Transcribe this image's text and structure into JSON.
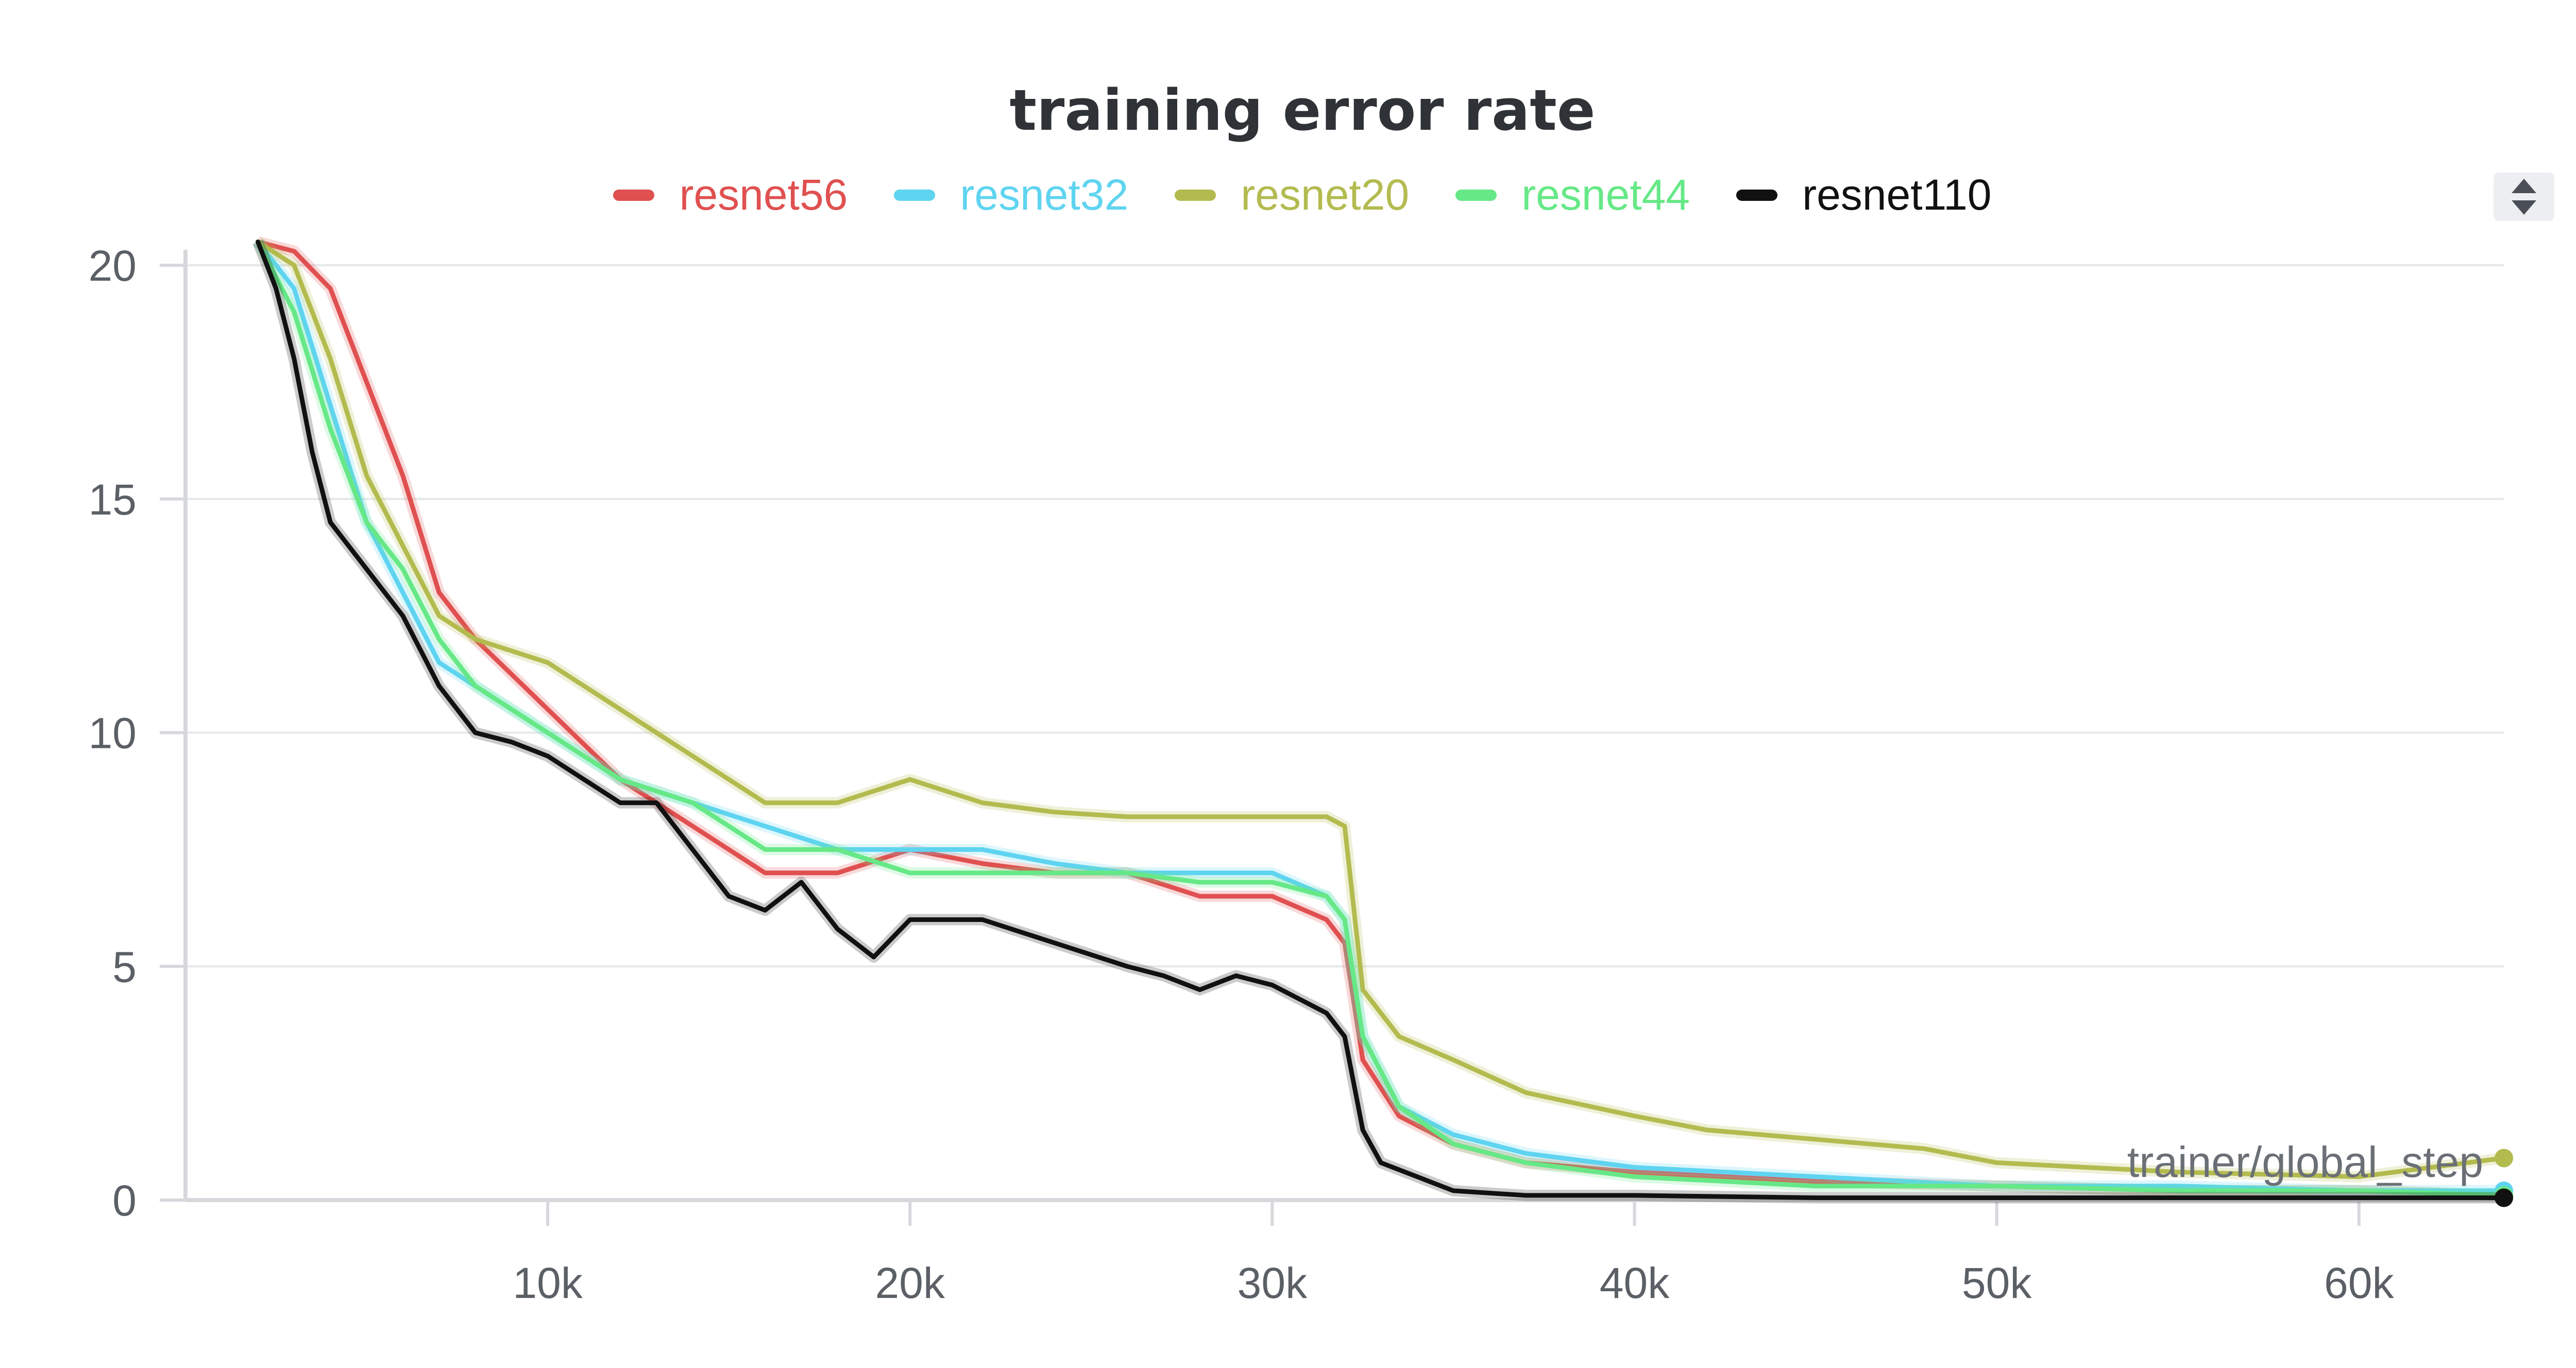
{
  "chart_data": {
    "type": "line",
    "title": "training error rate",
    "xlabel": "trainer/global_step",
    "ylabel": "",
    "xlim": [
      0,
      64000
    ],
    "ylim": [
      0,
      20
    ],
    "x_ticks": [
      {
        "value": 10000,
        "label": "10k"
      },
      {
        "value": 20000,
        "label": "20k"
      },
      {
        "value": 30000,
        "label": "30k"
      },
      {
        "value": 40000,
        "label": "40k"
      },
      {
        "value": 50000,
        "label": "50k"
      },
      {
        "value": 60000,
        "label": "60k"
      }
    ],
    "y_ticks": [
      {
        "value": 0,
        "label": "0"
      },
      {
        "value": 5,
        "label": "5"
      },
      {
        "value": 10,
        "label": "10"
      },
      {
        "value": 15,
        "label": "15"
      },
      {
        "value": 20,
        "label": "20"
      }
    ],
    "grid": true,
    "legend_position": "top",
    "series": [
      {
        "name": "resnet56",
        "color": "#e05050",
        "x": [
          2000,
          3000,
          4000,
          5000,
          6000,
          7000,
          8000,
          10000,
          12000,
          14000,
          16000,
          18000,
          20000,
          22000,
          24000,
          26000,
          28000,
          30000,
          31500,
          32000,
          32500,
          33500,
          35000,
          37000,
          40000,
          45000,
          50000,
          55000,
          60000,
          64000
        ],
        "y": [
          20.5,
          20.3,
          19.5,
          17.5,
          15.5,
          13,
          12,
          10.5,
          9,
          8,
          7,
          7,
          7.5,
          7.2,
          7,
          7,
          6.5,
          6.5,
          6,
          5.5,
          3,
          1.8,
          1.2,
          0.8,
          0.6,
          0.4,
          0.3,
          0.2,
          0.2,
          0.1
        ]
      },
      {
        "name": "resnet32",
        "color": "#5fd4f0",
        "x": [
          2000,
          3000,
          4000,
          5000,
          6000,
          7000,
          8000,
          10000,
          12000,
          14000,
          16000,
          18000,
          20000,
          22000,
          24000,
          26000,
          28000,
          30000,
          31500,
          32000,
          32500,
          33500,
          35000,
          37000,
          40000,
          45000,
          50000,
          55000,
          60000,
          64000
        ],
        "y": [
          20.5,
          19.5,
          17,
          14.5,
          13,
          11.5,
          11,
          10,
          9,
          8.5,
          8,
          7.5,
          7.5,
          7.5,
          7.2,
          7,
          7,
          7,
          6.5,
          6,
          3.5,
          2,
          1.4,
          1,
          0.7,
          0.5,
          0.3,
          0.3,
          0.2,
          0.2
        ]
      },
      {
        "name": "resnet20",
        "color": "#b3bb4f",
        "x": [
          2000,
          3000,
          4000,
          5000,
          6000,
          7000,
          8000,
          10000,
          12000,
          14000,
          16000,
          18000,
          20000,
          22000,
          24000,
          26000,
          28000,
          30000,
          31500,
          32000,
          32500,
          33500,
          35000,
          37000,
          40000,
          42000,
          45000,
          48000,
          50000,
          55000,
          60000,
          64000
        ],
        "y": [
          20.5,
          20,
          18,
          15.5,
          14,
          12.5,
          12,
          11.5,
          10.5,
          9.5,
          8.5,
          8.5,
          9,
          8.5,
          8.3,
          8.2,
          8.2,
          8.2,
          8.2,
          8,
          4.5,
          3.5,
          3,
          2.3,
          1.8,
          1.5,
          1.3,
          1.1,
          0.8,
          0.6,
          0.5,
          0.9
        ]
      },
      {
        "name": "resnet44",
        "color": "#66e887",
        "x": [
          2000,
          3000,
          4000,
          5000,
          6000,
          7000,
          8000,
          10000,
          12000,
          14000,
          16000,
          18000,
          20000,
          22000,
          24000,
          26000,
          28000,
          30000,
          31500,
          32000,
          32500,
          33500,
          35000,
          37000,
          40000,
          45000,
          50000,
          55000,
          60000,
          64000
        ],
        "y": [
          20.5,
          19,
          16.5,
          14.5,
          13.5,
          12,
          11,
          10,
          9,
          8.5,
          7.5,
          7.5,
          7,
          7,
          7,
          7,
          6.8,
          6.8,
          6.5,
          6,
          3.5,
          2,
          1.2,
          0.8,
          0.5,
          0.3,
          0.3,
          0.2,
          0.2,
          0.1
        ]
      },
      {
        "name": "resnet110",
        "color": "#111111",
        "x": [
          2000,
          2500,
          3000,
          3500,
          4000,
          5000,
          6000,
          7000,
          8000,
          9000,
          10000,
          12000,
          13000,
          14000,
          15000,
          16000,
          17000,
          18000,
          19000,
          20000,
          22000,
          24000,
          26000,
          27000,
          28000,
          29000,
          30000,
          31000,
          31500,
          32000,
          32500,
          33000,
          34000,
          35000,
          37000,
          40000,
          45000,
          50000,
          55000,
          60000,
          64000
        ],
        "y": [
          20.5,
          19.5,
          18,
          16,
          14.5,
          13.5,
          12.5,
          11,
          10,
          9.8,
          9.5,
          8.5,
          8.5,
          7.5,
          6.5,
          6.2,
          6.8,
          5.8,
          5.2,
          6,
          6,
          5.5,
          5,
          4.8,
          4.5,
          4.8,
          4.6,
          4.2,
          4,
          3.5,
          1.5,
          0.8,
          0.5,
          0.2,
          0.1,
          0.1,
          0.05,
          0.05,
          0.05,
          0.05,
          0.05
        ]
      }
    ]
  }
}
